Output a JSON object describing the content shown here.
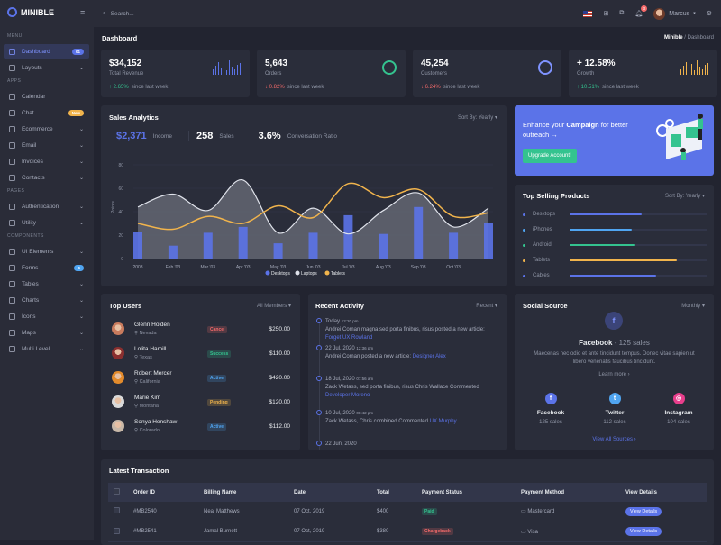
{
  "brand": "MINIBLE",
  "sidebar": {
    "sections": [
      {
        "label": "MENU",
        "items": [
          {
            "label": "Dashboard",
            "badge": "01",
            "active": true
          },
          {
            "label": "Layouts",
            "chevron": true
          }
        ]
      },
      {
        "label": "APPS",
        "items": [
          {
            "label": "Calendar"
          },
          {
            "label": "Chat",
            "badge": "New"
          },
          {
            "label": "Ecommerce",
            "chevron": true
          },
          {
            "label": "Email",
            "chevron": true
          },
          {
            "label": "Invoices",
            "chevron": true
          },
          {
            "label": "Contacts",
            "chevron": true
          }
        ]
      },
      {
        "label": "PAGES",
        "items": [
          {
            "label": "Authentication",
            "chevron": true
          },
          {
            "label": "Utility",
            "chevron": true
          }
        ]
      },
      {
        "label": "COMPONENTS",
        "items": [
          {
            "label": "UI Elements",
            "chevron": true
          },
          {
            "label": "Forms",
            "badge": "6"
          },
          {
            "label": "Tables",
            "chevron": true
          },
          {
            "label": "Charts",
            "chevron": true
          },
          {
            "label": "Icons",
            "chevron": true
          },
          {
            "label": "Maps",
            "chevron": true
          },
          {
            "label": "Multi Level",
            "chevron": true
          }
        ]
      }
    ]
  },
  "topbar": {
    "search_placeholder": "Search...",
    "notification_count": "3",
    "user": "Marcus"
  },
  "page": {
    "title": "Dashboard",
    "breadcrumb": [
      "Minible",
      "Dashboard"
    ]
  },
  "stats": [
    {
      "value": "$34,152",
      "label": "Total Revenue",
      "change": "2.65%",
      "dir": "up",
      "since": "since last week",
      "widget": "bars",
      "color": "#5b73e8"
    },
    {
      "value": "5,643",
      "label": "Orders",
      "change": "0.82%",
      "dir": "down",
      "since": "since last week",
      "widget": "ring",
      "color": "#34c38f"
    },
    {
      "value": "45,254",
      "label": "Customers",
      "change": "6.24%",
      "dir": "down",
      "since": "since last week",
      "widget": "ring",
      "color": "#7f93ff"
    },
    {
      "value": "+ 12.58%",
      "label": "Growth",
      "change": "10.51%",
      "dir": "up",
      "since": "since last week",
      "widget": "bars",
      "color": "#f1b44c"
    }
  ],
  "sales": {
    "title": "Sales Analytics",
    "sort": "Sort By: Yearly",
    "kpis": [
      {
        "value": "$2,371",
        "label": "Income"
      },
      {
        "value": "258",
        "label": "Sales"
      },
      {
        "value": "3.6%",
        "label": "Conversation Ratio"
      }
    ]
  },
  "chart_data": {
    "type": "bar",
    "ylabel": "Points",
    "ylim": [
      0,
      80
    ],
    "yticks": [
      0,
      20,
      40,
      60,
      80
    ],
    "categories": [
      "2003",
      "Feb '03",
      "Mar '03",
      "Apr '03",
      "May '03",
      "Jun '03",
      "Jul '03",
      "Aug '03",
      "Sep '03",
      "Oct '03",
      ""
    ],
    "legend_position": "bottom",
    "series": [
      {
        "name": "Desktops",
        "type": "bar",
        "color": "#5b73e8",
        "values": [
          23,
          11,
          22,
          27,
          13,
          22,
          37,
          21,
          44,
          22,
          30
        ]
      },
      {
        "name": "Laptops",
        "type": "area",
        "color": "#dfe2ea",
        "values": [
          44,
          55,
          41,
          67,
          22,
          43,
          21,
          41,
          56,
          27,
          43
        ]
      },
      {
        "name": "Tablets",
        "type": "line",
        "color": "#f1b44c",
        "values": [
          30,
          25,
          36,
          30,
          45,
          35,
          64,
          52,
          59,
          36,
          39
        ]
      }
    ]
  },
  "campaign": {
    "text_pre": "Enhance your ",
    "text_bold": "Campaign",
    "text_post": " for better outreach →",
    "button": "Upgrade Account!"
  },
  "top_selling": {
    "title": "Top Selling Products",
    "sort": "Sort By: Yearly",
    "items": [
      {
        "label": "Desktops",
        "value": 52,
        "color": "#5b73e8"
      },
      {
        "label": "iPhones",
        "value": 45,
        "color": "#50a5f1"
      },
      {
        "label": "Android",
        "value": 48,
        "color": "#34c38f"
      },
      {
        "label": "Tablets",
        "value": 78,
        "color": "#f1b44c"
      },
      {
        "label": "Cables",
        "value": 63,
        "color": "#5b73e8"
      }
    ]
  },
  "top_users": {
    "title": "Top Users",
    "filter": "All Members",
    "rows": [
      {
        "name": "Glenn Holden",
        "loc": "Nevada",
        "status": "Cancel",
        "amount": "$250.00"
      },
      {
        "name": "Lolita Hamill",
        "loc": "Texas",
        "status": "Success",
        "amount": "$110.00"
      },
      {
        "name": "Robert Mercer",
        "loc": "California",
        "status": "Active",
        "amount": "$420.00"
      },
      {
        "name": "Marie Kim",
        "loc": "Montana",
        "status": "Pending",
        "amount": "$120.00"
      },
      {
        "name": "Sonya Henshaw",
        "loc": "Colorado",
        "status": "Active",
        "amount": "$112.00"
      }
    ]
  },
  "activity": {
    "title": "Recent Activity",
    "filter": "Recent",
    "items": [
      {
        "date": "Today",
        "time": "12:20 pm",
        "text": "Andrei Coman magna sed porta finibus, risus posted a new article:",
        "link": "Forget UX Rowland"
      },
      {
        "date": "22 Jul, 2020",
        "time": "12:36 pm",
        "text": "Andrei Coman posted a new article:",
        "link": "Designer Alex"
      },
      {
        "date": "18 Jul, 2020",
        "time": "07:56 am",
        "text": "Zack Wetass, sed porta finibus, risus Chris Wallace Commented",
        "link": "Developer Moreno"
      },
      {
        "date": "10 Jul, 2020",
        "time": "08:42 pm",
        "text": "Zack Wetass, Chris combined Commented",
        "link": "UX Murphy"
      },
      {
        "date": "22 Jun, 2020",
        "time": "",
        "text": "",
        "link": ""
      }
    ]
  },
  "social": {
    "title": "Social Source",
    "filter": "Monthly",
    "headline": "Facebook",
    "headline_sales": " - 125 sales",
    "desc": "Maecenas nec odio et ante tincidunt tempus. Donec vitae sapien ut libero venenatis faucibus tincidunt.",
    "learn": "Learn more ›",
    "sources": [
      {
        "name": "Facebook",
        "sales": "125 sales",
        "color": "#5b73e8"
      },
      {
        "name": "Twitter",
        "sales": "112 sales",
        "color": "#50a5f1"
      },
      {
        "name": "Instagram",
        "sales": "104 sales",
        "color": "#e83e8c"
      }
    ],
    "view_all": "View All Sources ›"
  },
  "transactions": {
    "title": "Latest Transaction",
    "columns": [
      "Order ID",
      "Billing Name",
      "Date",
      "Total",
      "Payment Status",
      "Payment Method",
      "View Details"
    ],
    "rows": [
      {
        "id": "#MB2540",
        "name": "Neal Matthews",
        "date": "07 Oct, 2019",
        "total": "$400",
        "status": "Paid",
        "method": "Mastercard",
        "action": "View Details"
      },
      {
        "id": "#MB2541",
        "name": "Jamal Burnett",
        "date": "07 Oct, 2019",
        "total": "$380",
        "status": "Chargeback",
        "method": "Visa",
        "action": "View Details"
      }
    ]
  },
  "status_colors": {
    "Cancel": "#f46a6a",
    "Success": "#34c38f",
    "Active": "#50a5f1",
    "Pending": "#f1b44c",
    "Paid": "#34c38f",
    "Chargeback": "#f46a6a"
  }
}
